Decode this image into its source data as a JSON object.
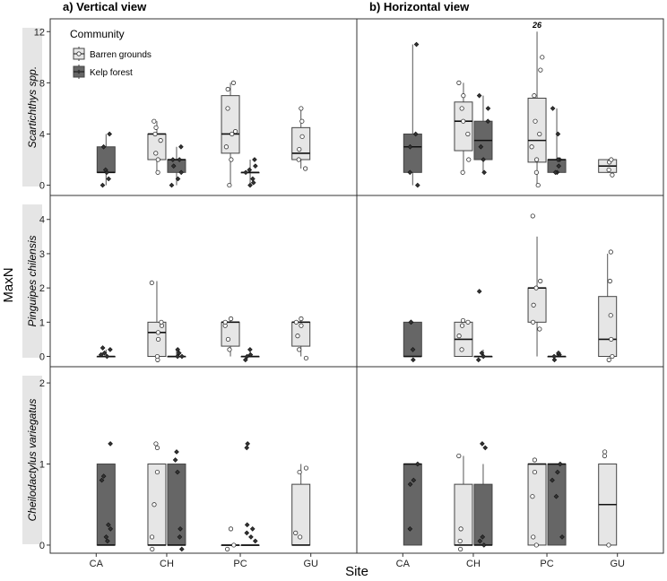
{
  "figure": {
    "x_label": "Site",
    "y_label": "MaxN",
    "legend": {
      "title": "Community",
      "placement": "top-left"
    }
  },
  "chart_data": {
    "type": "box",
    "sites": [
      "CA",
      "CH",
      "PC",
      "GU"
    ],
    "columns": [
      "a) Vertical view",
      "b) Horizontal view"
    ],
    "groups": [
      {
        "name": "Barren grounds",
        "color": "#e6e6e6"
      },
      {
        "name": "Kelp forest",
        "color": "#666666"
      }
    ],
    "rows": [
      {
        "label": "Scartichthys spp.",
        "ylim": [
          -0.8,
          13
        ],
        "yticks": [
          0,
          4,
          8,
          12
        ],
        "panels": [
          {
            "boxes": [
              {
                "site": "CA",
                "group": "Kelp forest",
                "q1": 1,
                "median": 1,
                "q3": 3,
                "whisker_low": 0,
                "whisker_high": 4,
                "points": [
                  0,
                  0.5,
                  1,
                  1.2,
                  3,
                  4
                ]
              },
              {
                "site": "CH",
                "group": "Barren grounds",
                "q1": 2,
                "median": 4,
                "q3": 4,
                "whisker_low": 1,
                "whisker_high": 5,
                "points": [
                  1,
                  2,
                  2.5,
                  3.5,
                  4,
                  4.5,
                  5
                ]
              },
              {
                "site": "CH",
                "group": "Kelp forest",
                "q1": 1,
                "median": 2,
                "q3": 2,
                "whisker_low": 0,
                "whisker_high": 3,
                "points": [
                  0,
                  0.5,
                  1,
                  1.5,
                  2,
                  2,
                  3
                ]
              },
              {
                "site": "PC",
                "group": "Barren grounds",
                "q1": 2.5,
                "median": 4,
                "q3": 7,
                "whisker_low": 0,
                "whisker_high": 8,
                "points": [
                  0,
                  2,
                  3,
                  4,
                  4.2,
                  6,
                  7.5,
                  8
                ]
              },
              {
                "site": "PC",
                "group": "Kelp forest",
                "q1": 1,
                "median": 1,
                "q3": 1,
                "whisker_low": 0,
                "whisker_high": 2,
                "points": [
                  0,
                  0.2,
                  0.5,
                  1,
                  1.2,
                  1.5,
                  2
                ]
              },
              {
                "site": "GU",
                "group": "Barren grounds",
                "q1": 2,
                "median": 2.5,
                "q3": 4.5,
                "whisker_low": 1.3,
                "whisker_high": 6,
                "points": [
                  1.3,
                  2,
                  2.8,
                  3.8,
                  5,
                  6
                ]
              }
            ]
          },
          {
            "annotation": {
              "text": "26",
              "site": "PC",
              "group": "Barren grounds",
              "y": 12.5
            },
            "boxes": [
              {
                "site": "CA",
                "group": "Kelp forest",
                "q1": 1,
                "median": 3,
                "q3": 4,
                "whisker_low": 0,
                "whisker_high": 11,
                "points": [
                  0,
                  1,
                  3,
                  4,
                  11
                ]
              },
              {
                "site": "CH",
                "group": "Barren grounds",
                "q1": 2.7,
                "median": 5,
                "q3": 6.5,
                "whisker_low": 1,
                "whisker_high": 8,
                "points": [
                  1,
                  2,
                  4,
                  5,
                  6,
                  7,
                  8
                ]
              },
              {
                "site": "CH",
                "group": "Kelp forest",
                "q1": 2,
                "median": 3.5,
                "q3": 5,
                "whisker_low": 1,
                "whisker_high": 7,
                "points": [
                  1,
                  2,
                  3,
                  5,
                  6,
                  7
                ]
              },
              {
                "site": "PC",
                "group": "Barren grounds",
                "q1": 1.8,
                "median": 3.5,
                "q3": 6.8,
                "whisker_low": 0,
                "whisker_high": 12,
                "points": [
                  0,
                  1,
                  2,
                  3,
                  4,
                  5,
                  7,
                  9,
                  10
                ]
              },
              {
                "site": "PC",
                "group": "Kelp forest",
                "q1": 1,
                "median": 2,
                "q3": 2,
                "whisker_low": 1,
                "whisker_high": 6,
                "points": [
                  1,
                  1,
                  1.5,
                  2,
                  2,
                  4,
                  6
                ]
              },
              {
                "site": "GU",
                "group": "Barren grounds",
                "q1": 1,
                "median": 1.5,
                "q3": 2,
                "whisker_low": 1,
                "whisker_high": 2,
                "points": [
                  0.8,
                  1.2,
                  1.8,
                  2
                ]
              }
            ]
          }
        ]
      },
      {
        "label": "Pinguipes chilensis",
        "ylim": [
          -0.3,
          4.7
        ],
        "yticks": [
          0,
          1,
          2,
          3,
          4
        ],
        "panels": [
          {
            "boxes": [
              {
                "site": "CA",
                "group": "Kelp forest",
                "q1": 0,
                "median": 0,
                "q3": 0,
                "whisker_low": 0,
                "whisker_high": 0.2,
                "points": [
                  0,
                  0.05,
                  0.1,
                  0.2,
                  0.25
                ]
              },
              {
                "site": "CH",
                "group": "Barren grounds",
                "q1": 0,
                "median": 0.7,
                "q3": 1,
                "whisker_low": 0,
                "whisker_high": 2.2,
                "points": [
                  -0.1,
                  0,
                  0.5,
                  0.7,
                  0.9,
                  1,
                  2.15
                ]
              },
              {
                "site": "CH",
                "group": "Kelp forest",
                "q1": 0,
                "median": 0,
                "q3": 0,
                "whisker_low": 0,
                "whisker_high": 0.2,
                "points": [
                  0,
                  0,
                  0.1,
                  0.2
                ]
              },
              {
                "site": "PC",
                "group": "Barren grounds",
                "q1": 0.3,
                "median": 1,
                "q3": 1,
                "whisker_low": 0,
                "whisker_high": 1.1,
                "points": [
                  0.2,
                  0.5,
                  0.9,
                  1,
                  1.1
                ]
              },
              {
                "site": "PC",
                "group": "Kelp forest",
                "q1": 0,
                "median": 0,
                "q3": 0,
                "whisker_low": 0,
                "whisker_high": 0.2,
                "points": [
                  -0.1,
                  0,
                  0.05,
                  0.2
                ]
              },
              {
                "site": "GU",
                "group": "Barren grounds",
                "q1": 0.3,
                "median": 1,
                "q3": 1,
                "whisker_low": 0,
                "whisker_high": 1.1,
                "points": [
                  -0.05,
                  0.2,
                  0.6,
                  0.9,
                  1,
                  1.1
                ]
              }
            ]
          },
          {
            "boxes": [
              {
                "site": "CA",
                "group": "Kelp forest",
                "q1": 0,
                "median": 0,
                "q3": 1,
                "whisker_low": 0,
                "whisker_high": 1,
                "points": [
                  -0.1,
                  0.2,
                  1,
                  1
                ]
              },
              {
                "site": "CH",
                "group": "Barren grounds",
                "q1": 0,
                "median": 0.5,
                "q3": 1,
                "whisker_low": 0,
                "whisker_high": 1,
                "points": [
                  0.2,
                  0.6,
                  0.9,
                  1,
                  1.05
                ]
              },
              {
                "site": "CH",
                "group": "Kelp forest",
                "q1": 0,
                "median": 0,
                "q3": 0,
                "whisker_low": 0,
                "whisker_high": 0.2,
                "points": [
                  -0.1,
                  0,
                  0.1,
                  1.9
                ]
              },
              {
                "site": "PC",
                "group": "Barren grounds",
                "q1": 1,
                "median": 2,
                "q3": 2,
                "whisker_low": 0,
                "whisker_high": 3.5,
                "points": [
                  0.8,
                  1,
                  1.5,
                  2,
                  2.2,
                  4.1
                ]
              },
              {
                "site": "PC",
                "group": "Kelp forest",
                "q1": 0,
                "median": 0,
                "q3": 0,
                "whisker_low": 0,
                "whisker_high": 0.1,
                "points": [
                  -0.1,
                  0,
                  0.05,
                  0.1
                ]
              },
              {
                "site": "GU",
                "group": "Barren grounds",
                "q1": 0,
                "median": 0.5,
                "q3": 1.75,
                "whisker_low": 0,
                "whisker_high": 3,
                "points": [
                  -0.1,
                  0,
                  0.5,
                  1.2,
                  2.2,
                  3.05
                ]
              }
            ]
          }
        ]
      },
      {
        "label": "Cheilodactylus variegatus",
        "ylim": [
          -0.1,
          2.2
        ],
        "yticks": [
          0,
          1,
          2
        ],
        "panels": [
          {
            "boxes": [
              {
                "site": "CA",
                "group": "Kelp forest",
                "q1": 0,
                "median": 0,
                "q3": 1,
                "whisker_low": 0,
                "whisker_high": 1,
                "points": [
                  0.05,
                  0.1,
                  0.2,
                  0.25,
                  0.8,
                  0.85,
                  1.25
                ]
              },
              {
                "site": "CH",
                "group": "Barren grounds",
                "q1": 0,
                "median": 0,
                "q3": 1,
                "whisker_low": 0,
                "whisker_high": 1,
                "points": [
                  -0.05,
                  0.1,
                  0.5,
                  0.9,
                  1.2,
                  1.25
                ]
              },
              {
                "site": "CH",
                "group": "Kelp forest",
                "q1": 0,
                "median": 0,
                "q3": 1,
                "whisker_low": 0,
                "whisker_high": 1,
                "points": [
                  -0.05,
                  0.1,
                  0.2,
                  0.9,
                  1.05,
                  1.15
                ]
              },
              {
                "site": "PC",
                "group": "Barren grounds",
                "q1": 0,
                "median": 0,
                "q3": 0,
                "whisker_low": 0,
                "whisker_high": 0,
                "points": [
                  -0.05,
                  0,
                  0.2
                ]
              },
              {
                "site": "PC",
                "group": "Kelp forest",
                "q1": 0,
                "median": 0,
                "q3": 0,
                "whisker_low": 0,
                "whisker_high": 0,
                "points": [
                  0.05,
                  0.1,
                  0.15,
                  0.2,
                  0.25,
                  1.2,
                  1.25
                ]
              },
              {
                "site": "GU",
                "group": "Barren grounds",
                "q1": 0,
                "median": 0,
                "q3": 0.75,
                "whisker_low": 0,
                "whisker_high": 1,
                "points": [
                  0.1,
                  0.15,
                  0.9,
                  0.95
                ]
              }
            ]
          },
          {
            "boxes": [
              {
                "site": "CA",
                "group": "Kelp forest",
                "q1": 0,
                "median": 1,
                "q3": 1,
                "whisker_low": 0,
                "whisker_high": 1,
                "points": [
                  0.2,
                  0.75,
                  0.8,
                  1
                ]
              },
              {
                "site": "CH",
                "group": "Barren grounds",
                "q1": 0,
                "median": 0,
                "q3": 0.75,
                "whisker_low": 0,
                "whisker_high": 1.1,
                "points": [
                  -0.05,
                  0.05,
                  0.2,
                  1.1
                ]
              },
              {
                "site": "CH",
                "group": "Kelp forest",
                "q1": 0,
                "median": 0,
                "q3": 0.75,
                "whisker_low": 0,
                "whisker_high": 1,
                "points": [
                  0,
                  0.05,
                  0.1,
                  1.2,
                  1.25
                ]
              },
              {
                "site": "PC",
                "group": "Barren grounds",
                "q1": 0,
                "median": 1,
                "q3": 1,
                "whisker_low": 0,
                "whisker_high": 1,
                "points": [
                  0,
                  0.1,
                  0.6,
                  0.9,
                  1.05
                ]
              },
              {
                "site": "PC",
                "group": "Kelp forest",
                "q1": 0,
                "median": 1,
                "q3": 1,
                "whisker_low": 0,
                "whisker_high": 1,
                "points": [
                  0.1,
                  0.6,
                  0.8,
                  0.9,
                  1
                ]
              },
              {
                "site": "GU",
                "group": "Barren grounds",
                "q1": 0,
                "median": 0.5,
                "q3": 1,
                "whisker_low": 0,
                "whisker_high": 1,
                "points": [
                  0,
                  1.1,
                  1.15
                ]
              }
            ]
          }
        ]
      }
    ]
  }
}
